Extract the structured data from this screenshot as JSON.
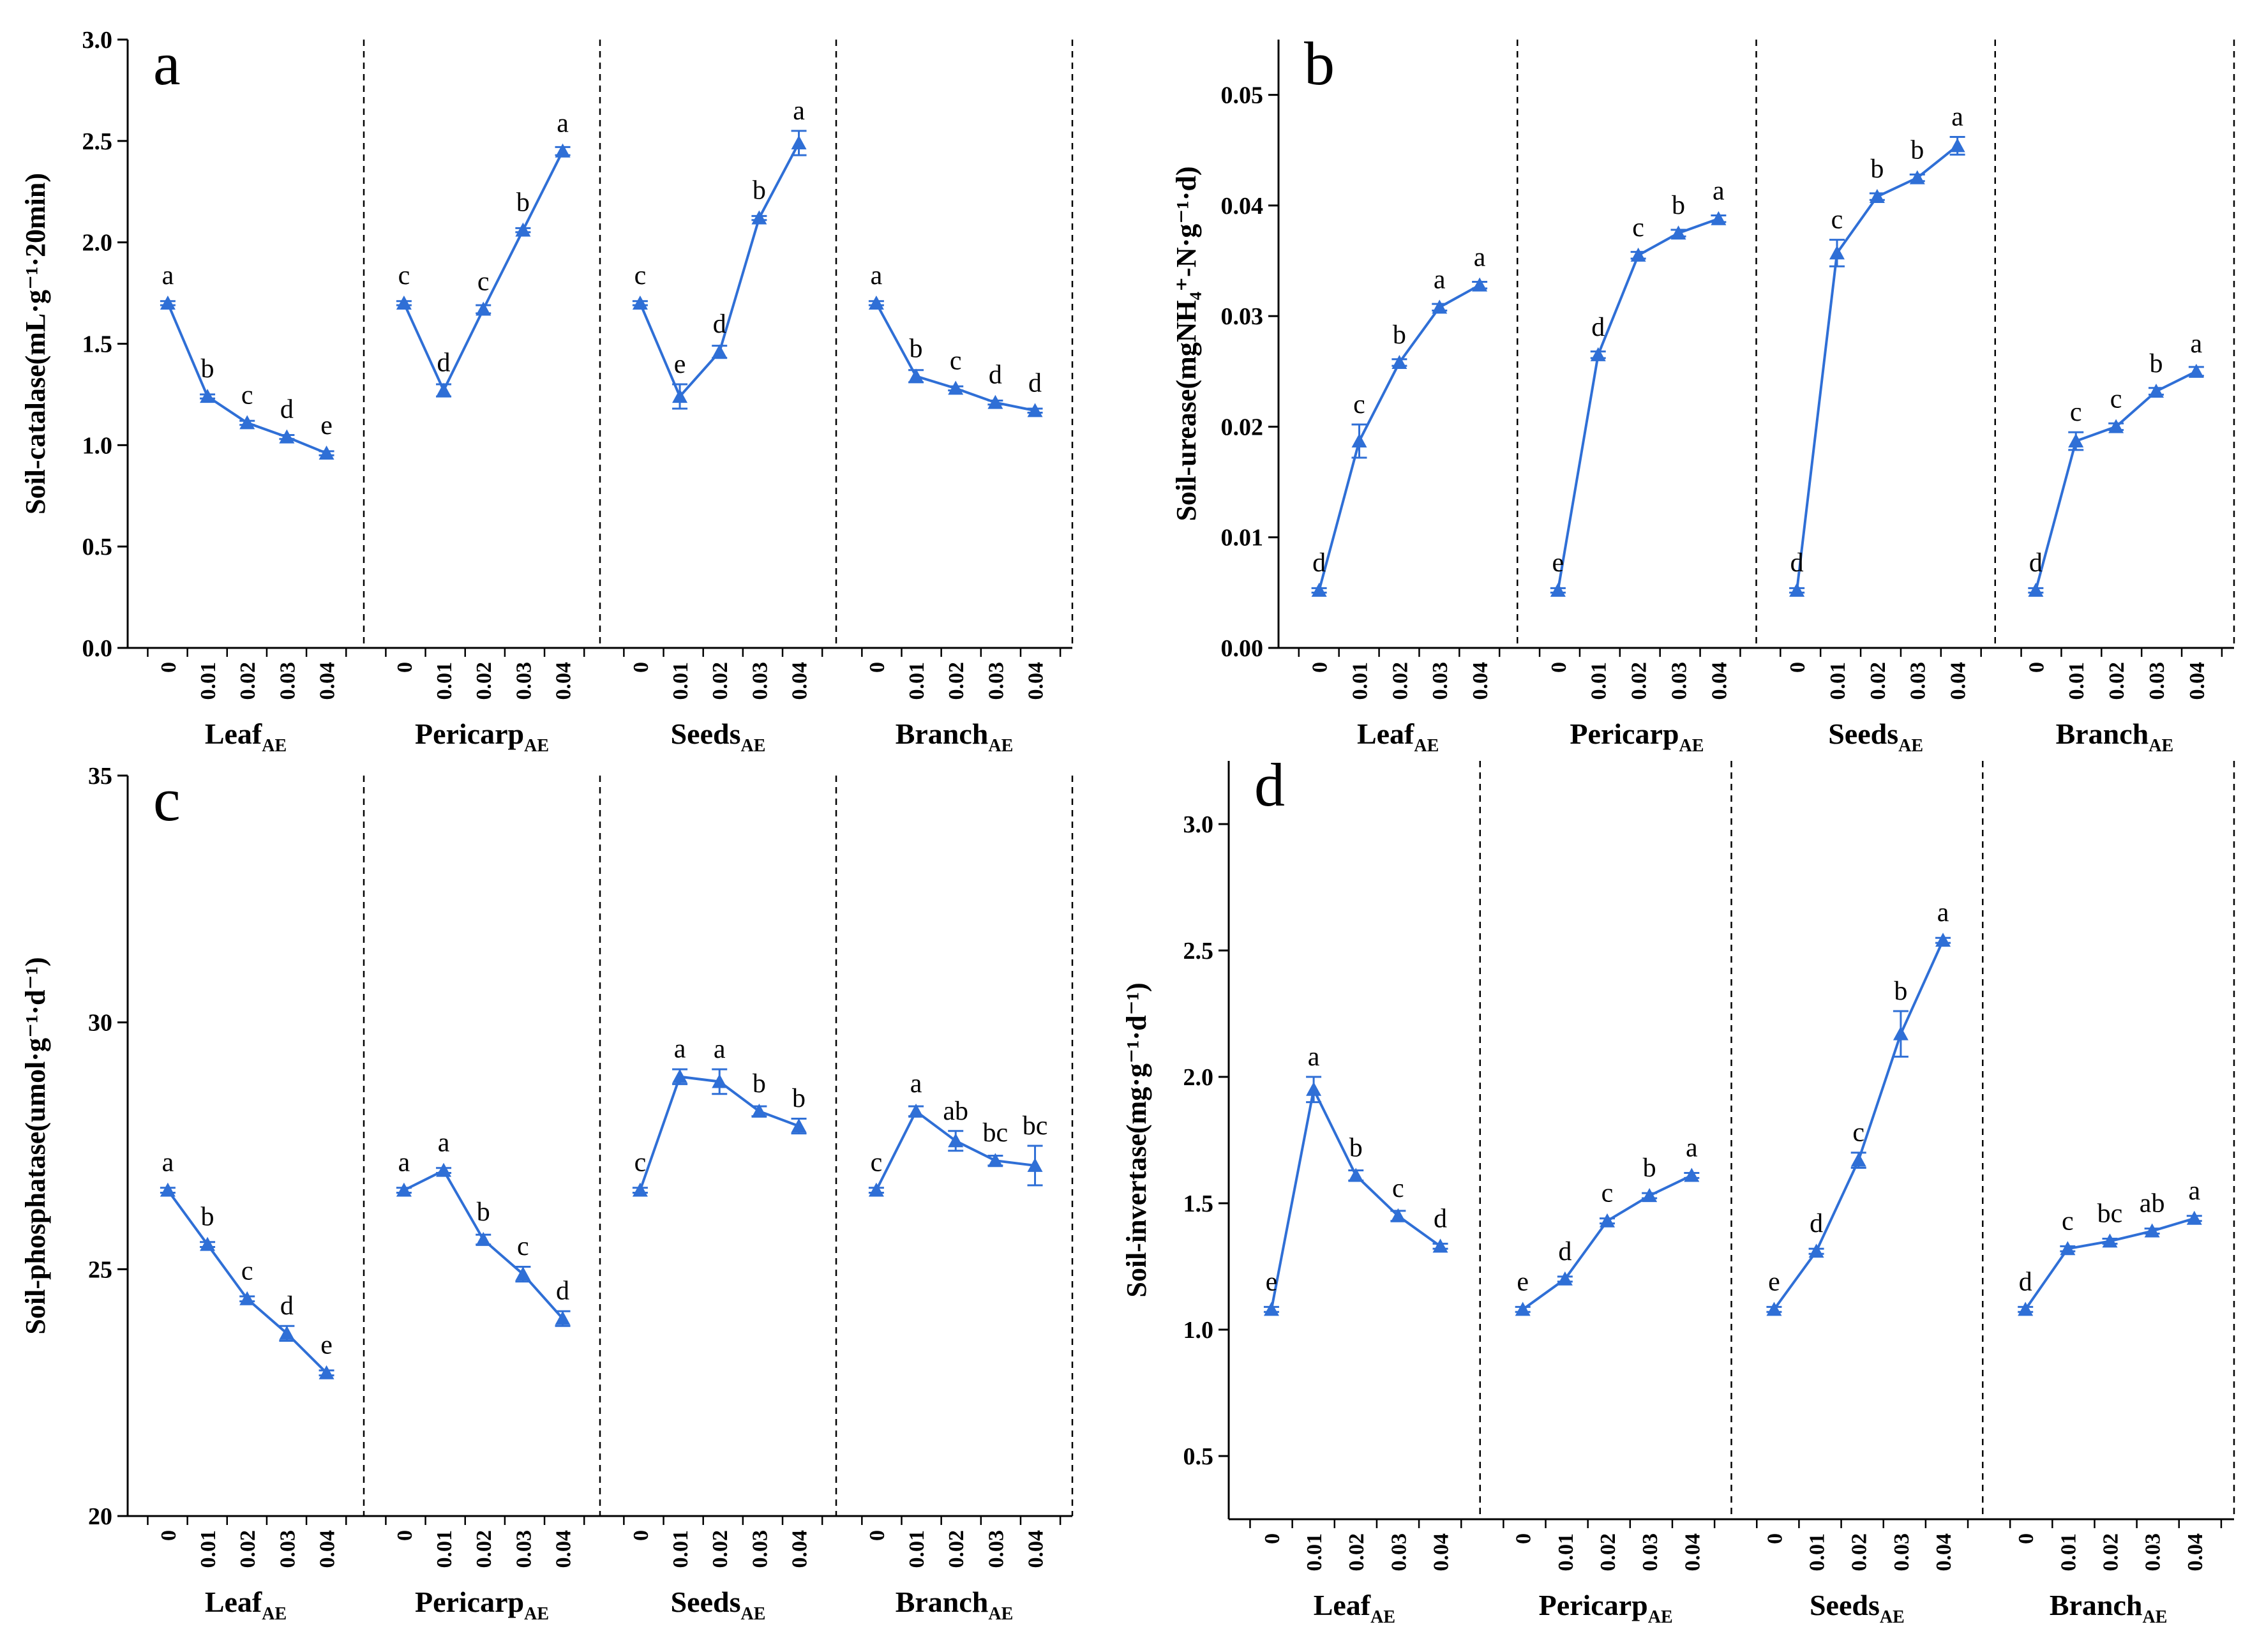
{
  "figure": {
    "series_color": "#2f6fd6"
  },
  "chart_data": [
    {
      "type": "line",
      "panel_label": "a",
      "ylabel": "Soil-catalase(mL·g⁻¹·20min)",
      "ylim": [
        0,
        3.0
      ],
      "yticks": [
        "0.0",
        "0.5",
        "1.0",
        "1.5",
        "2.0",
        "2.5",
        "3.0"
      ],
      "ytick_values": [
        0,
        0.5,
        1.0,
        1.5,
        2.0,
        2.5,
        3.0
      ],
      "x_tick_labels": [
        "0",
        "0.01",
        "0.02",
        "0.03",
        "0.04"
      ],
      "groups": [
        {
          "name": "Leaf",
          "subscript": "AE",
          "values": [
            1.7,
            1.24,
            1.11,
            1.04,
            0.96
          ],
          "errors": [
            0.01,
            0.01,
            0.01,
            0.01,
            0.01
          ],
          "letters": [
            "a",
            "b",
            "c",
            "d",
            "e"
          ]
        },
        {
          "name": "Pericarp",
          "subscript": "AE",
          "values": [
            1.7,
            1.27,
            1.67,
            2.06,
            2.45
          ],
          "errors": [
            0.01,
            0.03,
            0.02,
            0.01,
            0.02
          ],
          "letters": [
            "c",
            "d",
            "c",
            "b",
            "a"
          ]
        },
        {
          "name": "Seeds",
          "subscript": "AE",
          "values": [
            1.7,
            1.24,
            1.46,
            2.12,
            2.49
          ],
          "errors": [
            0.01,
            0.06,
            0.03,
            0.01,
            0.06
          ],
          "letters": [
            "c",
            "e",
            "d",
            "b",
            "a"
          ]
        },
        {
          "name": "Branch",
          "subscript": "AE",
          "values": [
            1.7,
            1.34,
            1.28,
            1.21,
            1.17
          ],
          "errors": [
            0.01,
            0.03,
            0.01,
            0.01,
            0.01
          ],
          "letters": [
            "a",
            "b",
            "c",
            "d",
            "d"
          ]
        }
      ]
    },
    {
      "type": "line",
      "panel_label": "b",
      "ylabel": "Soil-urease(mgNH₄⁺-N·g⁻¹·d)",
      "ylim": [
        0,
        0.055
      ],
      "yticks": [
        "0.00",
        "0.01",
        "0.02",
        "0.03",
        "0.04",
        "0.05"
      ],
      "ytick_values": [
        0,
        0.01,
        0.02,
        0.03,
        0.04,
        0.05
      ],
      "x_tick_labels": [
        "0",
        "0.01",
        "0.02",
        "0.03",
        "0.04"
      ],
      "groups": [
        {
          "name": "Leaf",
          "subscript": "AE",
          "values": [
            0.0052,
            0.0187,
            0.0258,
            0.0308,
            0.0328
          ],
          "errors": [
            0.0002,
            0.0015,
            0.0003,
            0.0003,
            0.0003
          ],
          "letters": [
            "d",
            "c",
            "b",
            "a",
            "a"
          ]
        },
        {
          "name": "Pericarp",
          "subscript": "AE",
          "values": [
            0.0052,
            0.0265,
            0.0355,
            0.0375,
            0.0388
          ],
          "errors": [
            0.0002,
            0.0003,
            0.0003,
            0.0003,
            0.0003
          ],
          "letters": [
            "e",
            "d",
            "c",
            "b",
            "a"
          ]
        },
        {
          "name": "Seeds",
          "subscript": "AE",
          "values": [
            0.0052,
            0.0357,
            0.0408,
            0.0425,
            0.0454
          ],
          "errors": [
            0.0002,
            0.0012,
            0.0003,
            0.0003,
            0.0008
          ],
          "letters": [
            "d",
            "c",
            "b",
            "b",
            "a"
          ]
        },
        {
          "name": "Branch",
          "subscript": "AE",
          "values": [
            0.0052,
            0.0187,
            0.02,
            0.0232,
            0.025
          ],
          "errors": [
            0.0002,
            0.0008,
            0.0003,
            0.0003,
            0.0004
          ],
          "letters": [
            "d",
            "c",
            "c",
            "b",
            "a"
          ]
        }
      ]
    },
    {
      "type": "line",
      "panel_label": "c",
      "ylabel": "Soil-phosphatase(umol·g⁻¹·d⁻¹)",
      "ylim": [
        20,
        35
      ],
      "yticks": [
        "20",
        "25",
        "30",
        "35"
      ],
      "ytick_values": [
        20,
        25,
        30,
        35
      ],
      "x_tick_labels": [
        "0",
        "0.01",
        "0.02",
        "0.03",
        "0.04"
      ],
      "groups": [
        {
          "name": "Leaf",
          "subscript": "AE",
          "values": [
            26.6,
            25.5,
            24.4,
            23.7,
            22.9
          ],
          "errors": [
            0.05,
            0.05,
            0.05,
            0.15,
            0.05
          ],
          "letters": [
            "a",
            "b",
            "c",
            "d",
            "e"
          ]
        },
        {
          "name": "Pericarp",
          "subscript": "AE",
          "values": [
            26.6,
            27.0,
            25.6,
            24.9,
            24.0
          ],
          "errors": [
            0.05,
            0.05,
            0.1,
            0.15,
            0.15
          ],
          "letters": [
            "a",
            "a",
            "b",
            "c",
            "d"
          ]
        },
        {
          "name": "Seeds",
          "subscript": "AE",
          "values": [
            26.6,
            28.9,
            28.8,
            28.2,
            27.9
          ],
          "errors": [
            0.05,
            0.15,
            0.25,
            0.1,
            0.15
          ],
          "letters": [
            "c",
            "a",
            "a",
            "b",
            "b"
          ]
        },
        {
          "name": "Branch",
          "subscript": "AE",
          "values": [
            26.6,
            28.2,
            27.6,
            27.2,
            27.1
          ],
          "errors": [
            0.05,
            0.1,
            0.2,
            0.1,
            0.4
          ],
          "letters": [
            "c",
            "a",
            "ab",
            "bc",
            "bc"
          ]
        }
      ]
    },
    {
      "type": "line",
      "panel_label": "d",
      "ylabel": "Soil-invertase(mg·g⁻¹·d⁻¹)",
      "ylim": [
        0.25,
        3.25
      ],
      "yticks": [
        "0.5",
        "1.0",
        "1.5",
        "2.0",
        "2.5",
        "3.0"
      ],
      "ytick_values": [
        0.5,
        1.0,
        1.5,
        2.0,
        2.5,
        3.0
      ],
      "x_tick_labels": [
        "0",
        "0.01",
        "0.02",
        "0.03",
        "0.04"
      ],
      "groups": [
        {
          "name": "Leaf",
          "subscript": "AE",
          "values": [
            1.08,
            1.95,
            1.61,
            1.45,
            1.33
          ],
          "errors": [
            0.01,
            0.05,
            0.02,
            0.02,
            0.01
          ],
          "letters": [
            "e",
            "a",
            "b",
            "c",
            "d"
          ]
        },
        {
          "name": "Pericarp",
          "subscript": "AE",
          "values": [
            1.08,
            1.2,
            1.43,
            1.53,
            1.61
          ],
          "errors": [
            0.01,
            0.01,
            0.01,
            0.01,
            0.01
          ],
          "letters": [
            "e",
            "d",
            "c",
            "b",
            "a"
          ]
        },
        {
          "name": "Seeds",
          "subscript": "AE",
          "values": [
            1.08,
            1.31,
            1.67,
            2.17,
            2.54
          ],
          "errors": [
            0.01,
            0.01,
            0.03,
            0.09,
            0.01
          ],
          "letters": [
            "e",
            "d",
            "c",
            "b",
            "a"
          ]
        },
        {
          "name": "Branch",
          "subscript": "AE",
          "values": [
            1.08,
            1.32,
            1.35,
            1.39,
            1.44
          ],
          "errors": [
            0.01,
            0.01,
            0.01,
            0.01,
            0.01
          ],
          "letters": [
            "d",
            "c",
            "bc",
            "ab",
            "a"
          ]
        }
      ]
    }
  ]
}
